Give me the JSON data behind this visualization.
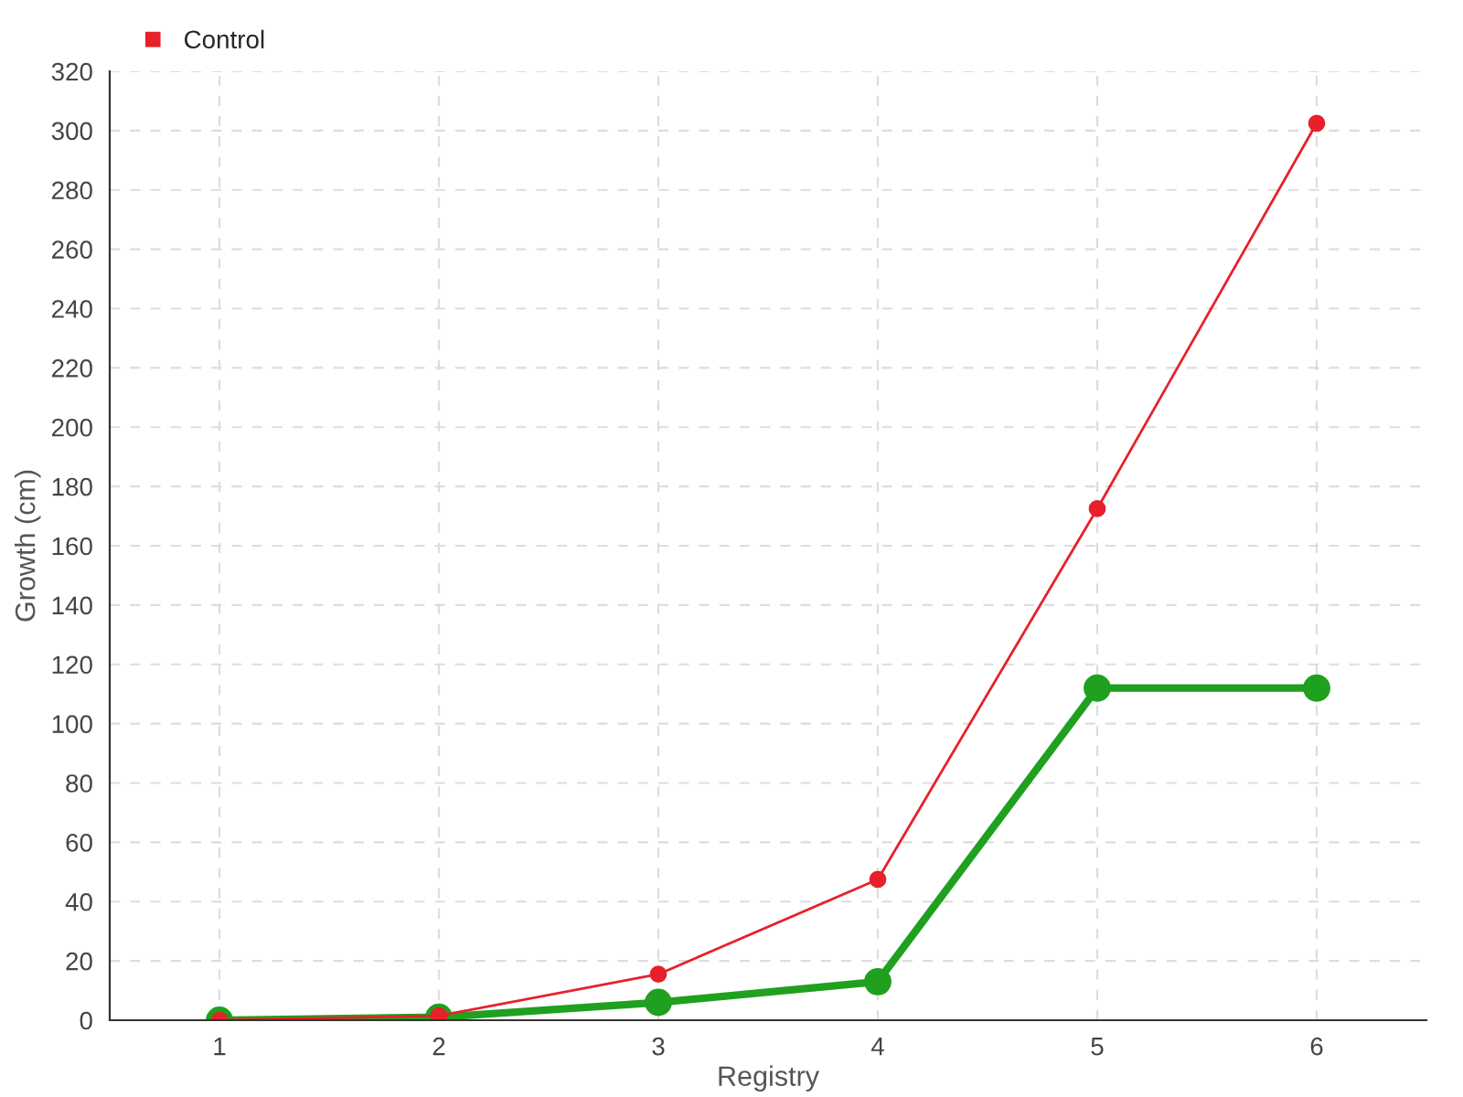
{
  "chart_data": {
    "type": "line",
    "xlabel": "Registry",
    "ylabel": "Growth (cm)",
    "x": [
      1,
      2,
      3,
      4,
      5,
      6
    ],
    "xlim": [
      0.5,
      6.5
    ],
    "xticks": [
      1,
      2,
      3,
      4,
      5,
      6
    ],
    "ylim": [
      0,
      320
    ],
    "yticks": [
      0,
      20,
      40,
      60,
      80,
      100,
      120,
      140,
      160,
      180,
      200,
      220,
      240,
      260,
      280,
      300,
      320
    ],
    "grid": true,
    "legend": "top left",
    "marker": "circle",
    "line_style": "solid",
    "series": [
      {
        "color": "#1fa01f",
        "values": [
          0,
          1,
          6,
          13,
          112,
          112
        ]
      },
      {
        "name": "Control",
        "color": "#e8202a",
        "values": [
          0,
          1.5,
          15.5,
          47.5,
          172.5,
          302.5
        ]
      }
    ]
  }
}
